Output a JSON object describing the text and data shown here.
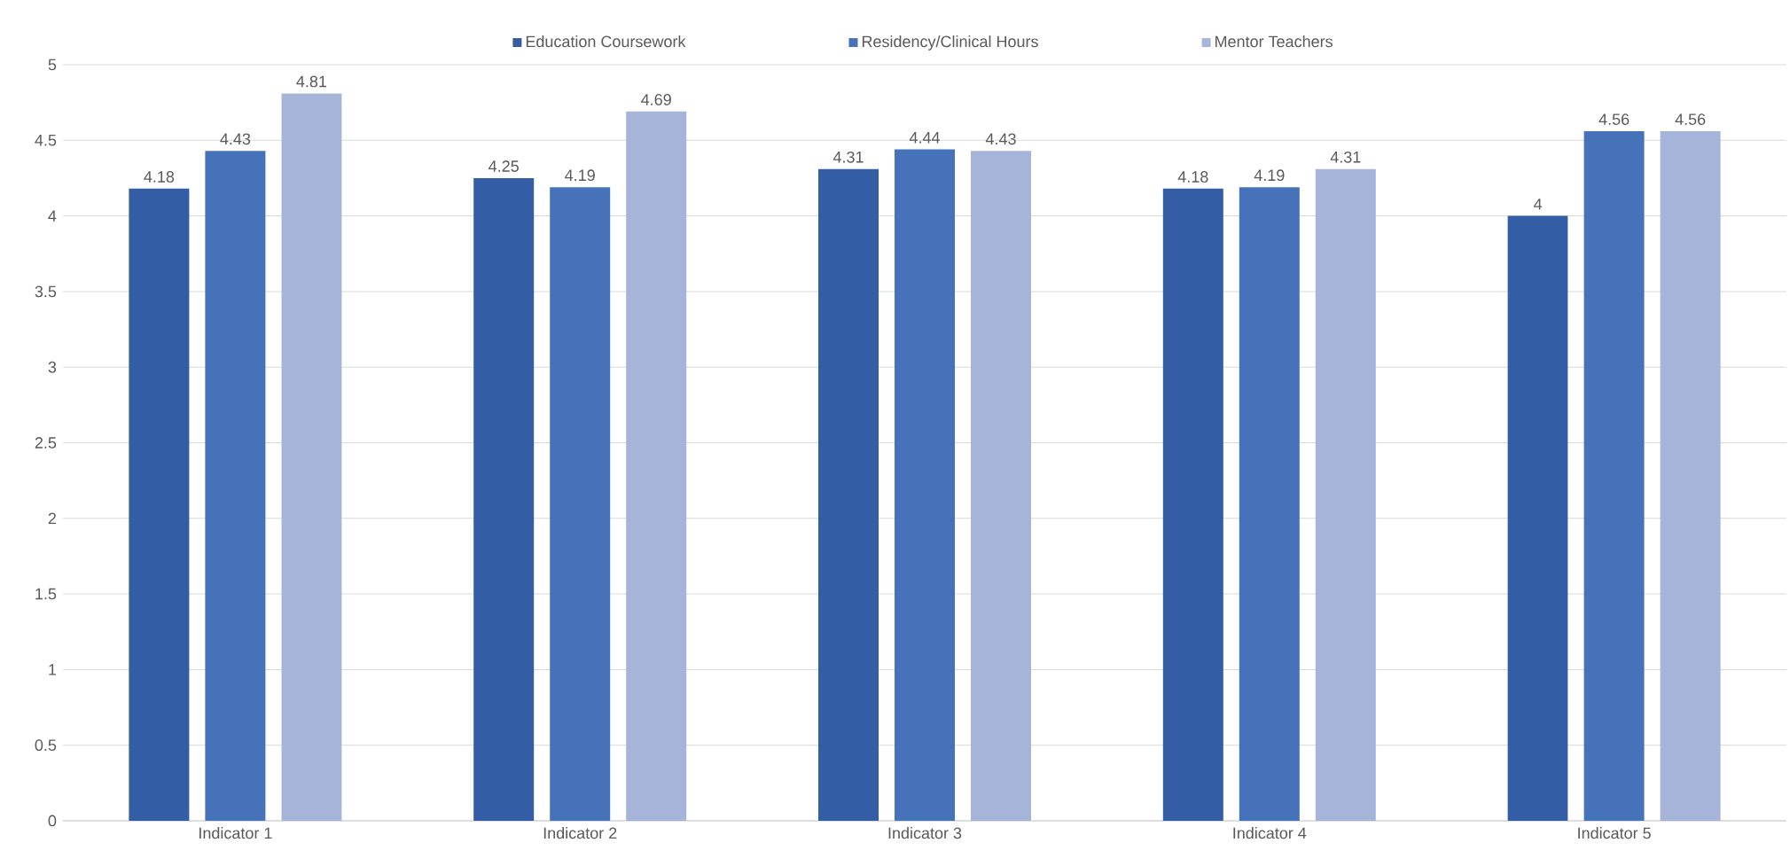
{
  "chart_data": {
    "type": "bar",
    "categories": [
      "Indicator 1",
      "Indicator 2",
      "Indicator 3",
      "Indicator 4",
      "Indicator 5"
    ],
    "series": [
      {
        "name": "Education Coursework",
        "color": "#335ea5",
        "values": [
          4.18,
          4.25,
          4.31,
          4.18,
          4
        ]
      },
      {
        "name": "Residency/Clinical Hours",
        "color": "#4672b9",
        "values": [
          4.43,
          4.19,
          4.44,
          4.19,
          4.56
        ]
      },
      {
        "name": "Mentor Teachers",
        "color": "#a7b4da",
        "values": [
          4.81,
          4.69,
          4.43,
          4.31,
          4.56
        ]
      }
    ],
    "ylim": [
      0,
      5
    ],
    "yticks": [
      0,
      0.5,
      1,
      1.5,
      2,
      2.5,
      3,
      3.5,
      4,
      4.5,
      5
    ],
    "grid": "y",
    "legend": "top",
    "data_labels": true
  }
}
